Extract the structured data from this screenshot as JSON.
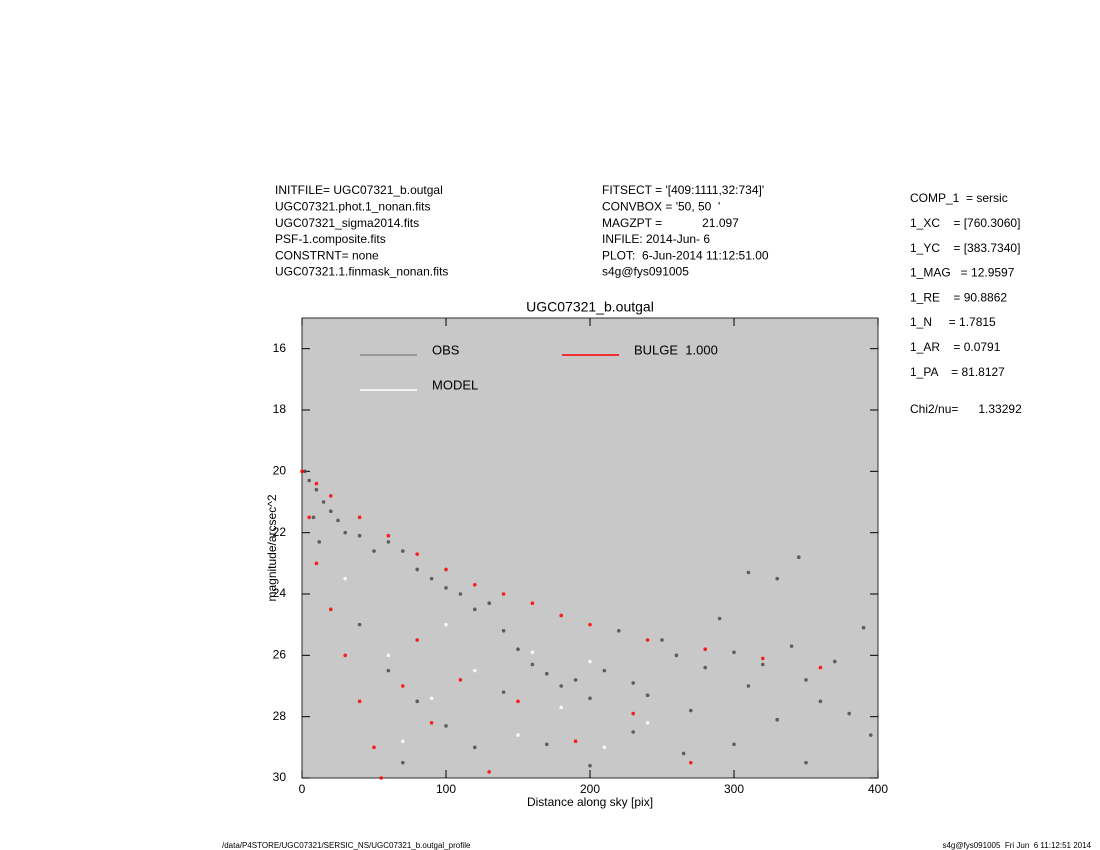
{
  "header": {
    "left": [
      "INITFILE= UGC07321_b.outgal",
      "UGC07321.phot.1_nonan.fits",
      "UGC07321_sigma2014.fits",
      "PSF-1.composite.fits",
      "CONSTRNT= none",
      "UGC07321.1.finmask_nonan.fits"
    ],
    "center": [
      "FITSECT = '[409:1111,32:734]'",
      "CONVBOX = '50, 50  '",
      "MAGZPT =            21.097",
      "INFILE: 2014-Jun- 6",
      "PLOT:  6-Jun-2014 11:12:51.00",
      "s4g@fys091005"
    ],
    "params": [
      "COMP_1  = sersic",
      "1_XC    = [760.3060]",
      "1_YC    = [383.7340]",
      "1_MAG   = 12.9597",
      "1_RE    = 90.8862",
      "1_N     = 1.7815",
      "1_AR    = 0.0791",
      "1_PA    = 81.8127"
    ],
    "chi2": "Chi2/nu=      1.33292"
  },
  "footer": {
    "left": "/data/P4STORE/UGC07321/SERSIC_NS/UGC07321_b.outgal_profile",
    "right": "s4g@fys091005  Fri Jun  6 11:12:51 2014"
  },
  "chart_data": {
    "type": "scatter",
    "title": "UGC07321_b.outgal",
    "xlabel": "Distance along sky [pix]",
    "ylabel": "magnitude/arcsec^2",
    "xlim": [
      0,
      400
    ],
    "xticks": [
      0,
      100,
      200,
      300,
      400
    ],
    "ylim": [
      15,
      30
    ],
    "yticks": [
      16,
      18,
      20,
      22,
      24,
      26,
      28,
      30
    ],
    "y_inverted": true,
    "background": "#c8c8c8",
    "series": [
      {
        "name": "OBS",
        "color": "#4a4a4a",
        "x": [
          2,
          5,
          10,
          15,
          20,
          8,
          12,
          25,
          30,
          40,
          50,
          60,
          70,
          80,
          90,
          100,
          110,
          120,
          130,
          140,
          150,
          160,
          170,
          180,
          190,
          200,
          210,
          220,
          230,
          240,
          250,
          260,
          270,
          280,
          290,
          300,
          310,
          320,
          330,
          340,
          350,
          360,
          370,
          380,
          390,
          395,
          310,
          330,
          345,
          60,
          80,
          100,
          120,
          140,
          170,
          200,
          230,
          265,
          300,
          350,
          40,
          70
        ],
        "values": [
          20.0,
          20.3,
          20.6,
          21.0,
          21.3,
          21.5,
          22.3,
          21.6,
          22.0,
          22.1,
          22.6,
          22.3,
          22.6,
          23.2,
          23.5,
          23.8,
          24.0,
          24.5,
          24.3,
          25.2,
          25.8,
          26.3,
          26.6,
          27.0,
          26.8,
          27.4,
          26.5,
          25.2,
          26.9,
          27.3,
          25.5,
          26.0,
          27.8,
          26.4,
          24.8,
          25.9,
          27.0,
          26.3,
          28.1,
          25.7,
          26.8,
          27.5,
          26.2,
          27.9,
          25.1,
          28.6,
          23.3,
          23.5,
          22.8,
          26.5,
          27.5,
          28.3,
          29.0,
          27.2,
          28.9,
          29.6,
          28.5,
          29.2,
          28.9,
          29.5,
          25.0,
          29.5
        ]
      },
      {
        "name": "MODEL",
        "color": "#ffffff",
        "x": [
          30,
          60,
          90,
          120,
          150,
          180,
          210,
          240,
          100,
          160,
          70,
          200
        ],
        "values": [
          23.5,
          26.0,
          27.4,
          26.5,
          28.6,
          27.7,
          29.0,
          28.2,
          25.0,
          25.9,
          28.8,
          26.2
        ]
      },
      {
        "name": "BULGE  1.000",
        "color": "#ff0000",
        "x": [
          0,
          10,
          20,
          40,
          60,
          80,
          100,
          120,
          140,
          160,
          180,
          200,
          240,
          280,
          320,
          360,
          5,
          10,
          20,
          30,
          40,
          50,
          55,
          70,
          90,
          110,
          150,
          190,
          230,
          270,
          130,
          80
        ],
        "values": [
          20.0,
          20.4,
          20.8,
          21.5,
          22.1,
          22.7,
          23.2,
          23.7,
          24.0,
          24.3,
          24.7,
          25.0,
          25.5,
          25.8,
          26.1,
          26.4,
          21.5,
          23.0,
          24.5,
          26.0,
          27.5,
          29.0,
          30.0,
          27.0,
          28.2,
          26.8,
          27.5,
          28.8,
          27.9,
          29.5,
          29.8,
          25.5
        ]
      }
    ]
  }
}
